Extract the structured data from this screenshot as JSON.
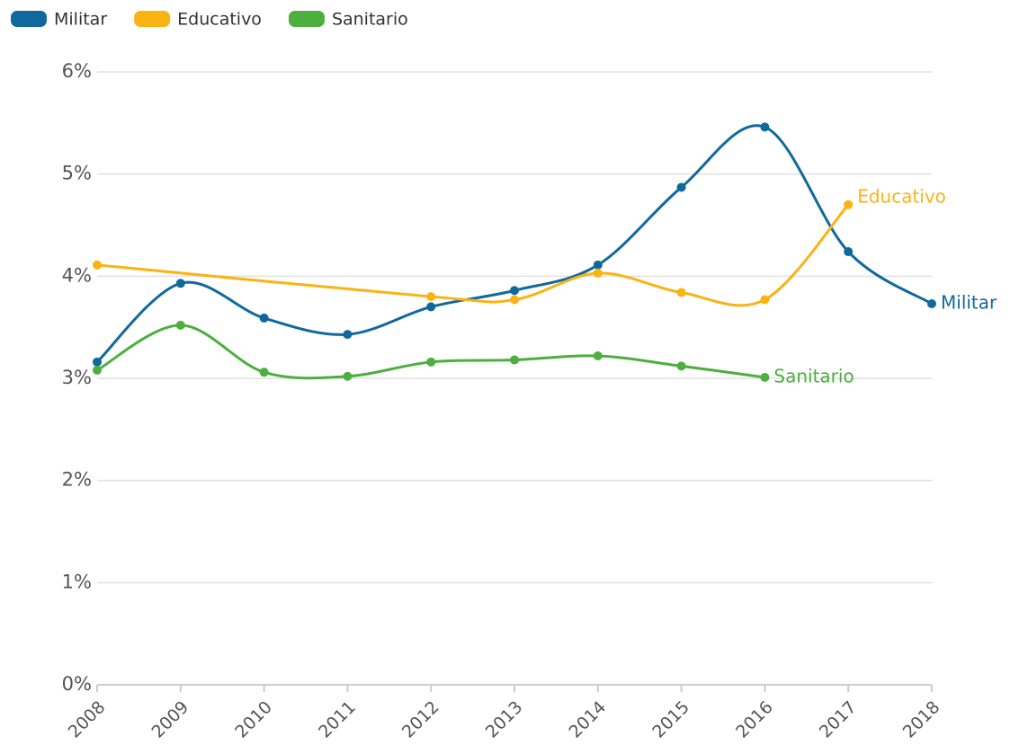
{
  "chart_data": {
    "type": "line",
    "x": [
      2008,
      2009,
      2010,
      2011,
      2012,
      2013,
      2014,
      2015,
      2016,
      2017,
      2018
    ],
    "xlim": [
      2008,
      2018
    ],
    "xticks": [
      2008,
      2009,
      2010,
      2011,
      2012,
      2013,
      2014,
      2015,
      2016,
      2017,
      2018
    ],
    "ylim": [
      0,
      6
    ],
    "yticks": [
      {
        "value": 0,
        "label": "0%"
      },
      {
        "value": 1,
        "label": "1%"
      },
      {
        "value": 2,
        "label": "2%"
      },
      {
        "value": 3,
        "label": "3%"
      },
      {
        "value": 4,
        "label": "4%"
      },
      {
        "value": 5,
        "label": "5%"
      },
      {
        "value": 6,
        "label": "6%"
      }
    ],
    "grid": true,
    "legend": "top-left",
    "series": [
      {
        "name": "Militar",
        "color": "#10699c",
        "x": [
          2008,
          2009,
          2010,
          2011,
          2012,
          2013,
          2014,
          2015,
          2016,
          2017,
          2018
        ],
        "values": [
          3.16,
          3.93,
          3.59,
          3.43,
          3.7,
          3.86,
          4.11,
          4.87,
          5.46,
          4.24,
          3.73
        ]
      },
      {
        "name": "Educativo",
        "color": "#fbb313",
        "x": [
          2008,
          2012,
          2013,
          2014,
          2015,
          2016,
          2017
        ],
        "values": [
          4.11,
          3.8,
          3.77,
          4.03,
          3.84,
          3.77,
          4.7
        ]
      },
      {
        "name": "Sanitario",
        "color": "#4caf3e",
        "x": [
          2008,
          2009,
          2010,
          2011,
          2012,
          2013,
          2014,
          2015,
          2016
        ],
        "values": [
          3.08,
          3.52,
          3.06,
          3.02,
          3.16,
          3.18,
          3.22,
          3.12,
          3.01
        ]
      }
    ]
  }
}
